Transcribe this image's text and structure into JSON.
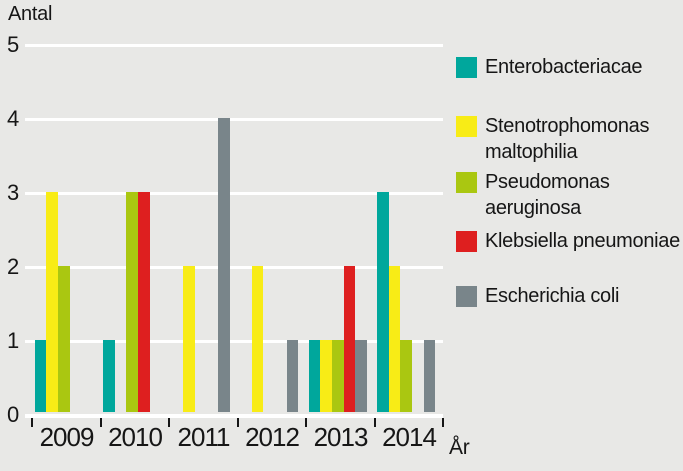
{
  "chart_data": {
    "type": "bar",
    "title": "",
    "ylabel": "Antal",
    "xlabel": "År",
    "ylim": [
      0,
      5
    ],
    "yticks": [
      0,
      1,
      2,
      3,
      4,
      5
    ],
    "grid": true,
    "legend_position": "right",
    "categories": [
      "2009",
      "2010",
      "2011",
      "2012",
      "2013",
      "2014"
    ],
    "series": [
      {
        "name": "Enterobacteriacae",
        "color": "#00a79c",
        "values": [
          1,
          1,
          0,
          0,
          1,
          3
        ]
      },
      {
        "name": "Stenotrophomonas maltophilia",
        "color": "#f8ec16",
        "values": [
          3,
          0,
          2,
          2,
          1,
          2
        ]
      },
      {
        "name": "Pseudomonas aeruginosa",
        "color": "#aac711",
        "values": [
          2,
          3,
          0,
          0,
          1,
          1
        ]
      },
      {
        "name": "Klebsiella pneumoniae",
        "color": "#de1f1f",
        "values": [
          0,
          3,
          0,
          0,
          2,
          0
        ]
      },
      {
        "name": "Escherichia coli",
        "color": "#79858a",
        "values": [
          0,
          0,
          4,
          1,
          1,
          1
        ]
      }
    ]
  },
  "colors": {
    "background": "#e8e8e6",
    "gridline": "#ffffff",
    "text": "#161616"
  }
}
